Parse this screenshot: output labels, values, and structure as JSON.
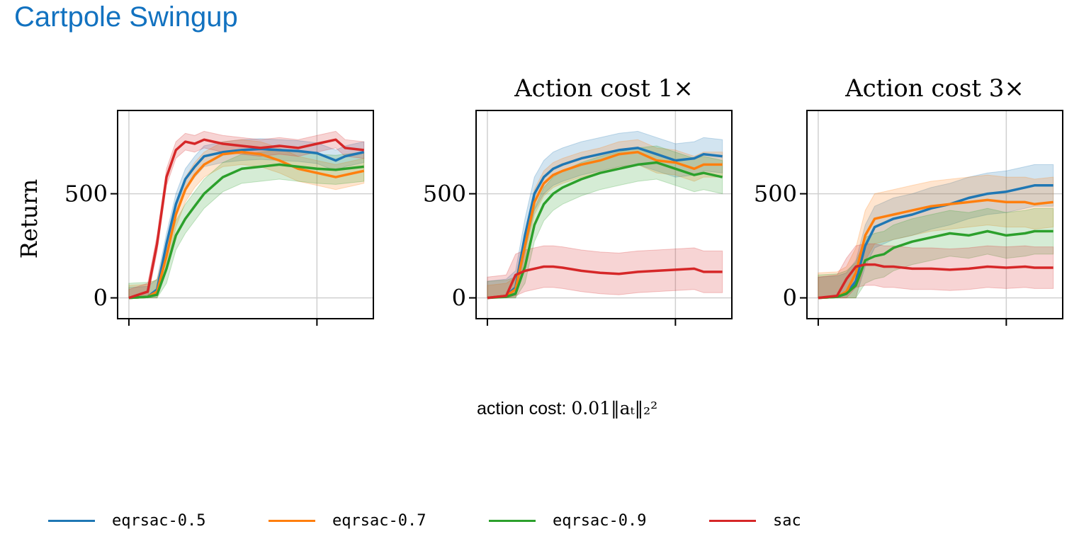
{
  "page": {
    "title": "Cartpole Swingup"
  },
  "caption": {
    "prefix": "action cost: ",
    "formula": "0.01‖aₜ‖₂²"
  },
  "colors": {
    "eqrsac-0.5": "#1f77b4",
    "eqrsac-0.7": "#ff7f0e",
    "eqrsac-0.9": "#2ca02c",
    "sac": "#d62728"
  },
  "legend": [
    {
      "label": "eqrsac-0.5",
      "color": "#1f77b4"
    },
    {
      "label": "eqrsac-0.7",
      "color": "#ff7f0e"
    },
    {
      "label": "eqrsac-0.9",
      "color": "#2ca02c"
    },
    {
      "label": "sac",
      "color": "#d62728"
    }
  ],
  "chart_data": [
    {
      "type": "line",
      "title": "",
      "ylabel": "Return",
      "xlabel": "",
      "ylim": [
        -100,
        900
      ],
      "xlim": [
        -0.06,
        1.3
      ],
      "x_ticks": [
        0,
        1
      ],
      "y_ticks": [
        0,
        500
      ],
      "grid": true,
      "x": [
        0,
        0.1,
        0.15,
        0.2,
        0.25,
        0.3,
        0.35,
        0.4,
        0.5,
        0.6,
        0.7,
        0.8,
        0.9,
        1.0,
        1.1,
        1.15,
        1.25
      ],
      "series": [
        {
          "name": "eqrsac-0.5",
          "color": "#1f77b4",
          "values": [
            0,
            5,
            40,
            260,
            450,
            570,
            630,
            680,
            700,
            710,
            715,
            710,
            705,
            695,
            660,
            680,
            700
          ],
          "band": 50
        },
        {
          "name": "eqrsac-0.7",
          "color": "#ff7f0e",
          "values": [
            0,
            5,
            30,
            200,
            400,
            520,
            590,
            640,
            690,
            700,
            690,
            660,
            620,
            600,
            580,
            590,
            610
          ],
          "band": 60
        },
        {
          "name": "eqrsac-0.9",
          "color": "#2ca02c",
          "values": [
            0,
            5,
            15,
            140,
            300,
            380,
            440,
            500,
            580,
            620,
            630,
            640,
            630,
            620,
            615,
            620,
            630
          ],
          "band": 70
        },
        {
          "name": "sac",
          "color": "#d62728",
          "values": [
            0,
            30,
            260,
            580,
            710,
            750,
            740,
            760,
            740,
            730,
            720,
            730,
            720,
            740,
            760,
            720,
            710
          ],
          "band": 40
        }
      ]
    },
    {
      "type": "line",
      "title": "Action cost 1×",
      "ylabel": "",
      "xlabel": "",
      "ylim": [
        -100,
        900
      ],
      "xlim": [
        -0.06,
        1.3
      ],
      "x_ticks": [
        0,
        1
      ],
      "y_ticks": [
        0,
        500
      ],
      "grid": true,
      "x": [
        0,
        0.1,
        0.15,
        0.2,
        0.25,
        0.3,
        0.35,
        0.4,
        0.5,
        0.6,
        0.7,
        0.8,
        0.9,
        1.0,
        1.1,
        1.15,
        1.25
      ],
      "series": [
        {
          "name": "eqrsac-0.5",
          "color": "#1f77b4",
          "values": [
            0,
            10,
            50,
            300,
            500,
            580,
            620,
            640,
            670,
            690,
            710,
            720,
            690,
            660,
            670,
            690,
            680
          ],
          "band": 80
        },
        {
          "name": "eqrsac-0.7",
          "color": "#ff7f0e",
          "values": [
            0,
            10,
            40,
            250,
            460,
            550,
            590,
            610,
            640,
            660,
            690,
            700,
            660,
            650,
            620,
            640,
            640
          ],
          "band": 60
        },
        {
          "name": "eqrsac-0.9",
          "color": "#2ca02c",
          "values": [
            0,
            5,
            20,
            150,
            350,
            450,
            500,
            530,
            570,
            600,
            620,
            640,
            650,
            620,
            590,
            600,
            580
          ],
          "band": 80
        },
        {
          "name": "sac",
          "color": "#d62728",
          "values": [
            0,
            10,
            110,
            130,
            140,
            150,
            150,
            145,
            130,
            120,
            115,
            125,
            130,
            135,
            140,
            125,
            125
          ],
          "band": 100
        }
      ]
    },
    {
      "type": "line",
      "title": "Action cost 3×",
      "ylabel": "",
      "xlabel": "",
      "ylim": [
        -100,
        900
      ],
      "xlim": [
        -0.06,
        1.3
      ],
      "x_ticks": [
        0,
        1
      ],
      "y_ticks": [
        0,
        500
      ],
      "grid": true,
      "x": [
        0,
        0.1,
        0.15,
        0.2,
        0.25,
        0.3,
        0.35,
        0.4,
        0.5,
        0.6,
        0.7,
        0.8,
        0.9,
        1.0,
        1.1,
        1.15,
        1.25
      ],
      "series": [
        {
          "name": "eqrsac-0.5",
          "color": "#1f77b4",
          "values": [
            0,
            5,
            20,
            80,
            250,
            340,
            360,
            380,
            400,
            430,
            450,
            480,
            500,
            510,
            530,
            540,
            540
          ],
          "band": 100
        },
        {
          "name": "eqrsac-0.7",
          "color": "#ff7f0e",
          "values": [
            0,
            5,
            30,
            120,
            300,
            380,
            390,
            400,
            420,
            440,
            450,
            460,
            470,
            460,
            460,
            450,
            460
          ],
          "band": 120
        },
        {
          "name": "eqrsac-0.9",
          "color": "#2ca02c",
          "values": [
            0,
            5,
            20,
            60,
            180,
            200,
            210,
            240,
            270,
            290,
            310,
            300,
            320,
            300,
            310,
            320,
            320
          ],
          "band": 110
        },
        {
          "name": "sac",
          "color": "#d62728",
          "values": [
            0,
            10,
            90,
            150,
            160,
            160,
            150,
            150,
            140,
            140,
            135,
            140,
            150,
            145,
            150,
            145,
            145
          ],
          "band": 100
        }
      ]
    }
  ]
}
